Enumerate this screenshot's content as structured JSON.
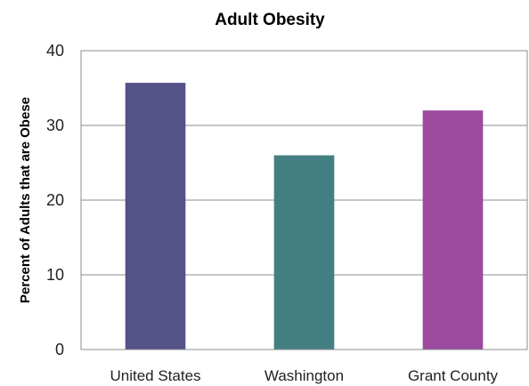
{
  "chart_data": {
    "type": "bar",
    "title": "Adult Obesity",
    "xlabel": "",
    "ylabel": "Percent of Adults that are Obese",
    "categories": [
      "United States",
      "Washington",
      "Grant County"
    ],
    "values": [
      35.7,
      26.0,
      32.0
    ],
    "colors": [
      "#545287",
      "#437f82",
      "#9c4aa0"
    ],
    "ylim": [
      0,
      40
    ],
    "yticks": [
      0,
      10,
      20,
      30,
      40
    ],
    "grid": true,
    "legend": "none"
  }
}
